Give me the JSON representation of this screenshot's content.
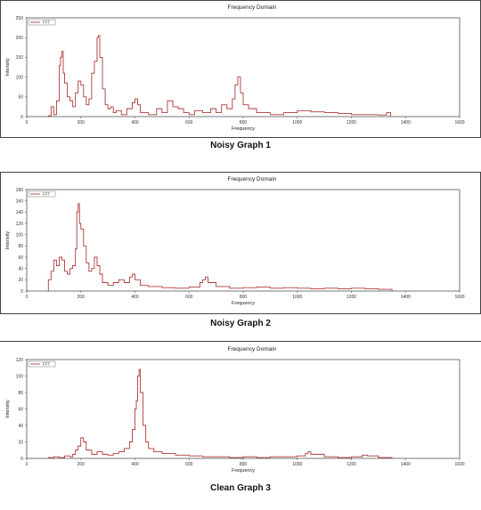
{
  "charts": [
    {
      "caption": "Noisy Graph 1",
      "chart_data": {
        "type": "line",
        "title": "Frequency Domain",
        "xlabel": "Frequency",
        "ylabel": "Intensity",
        "xlim": [
          0,
          1600
        ],
        "ylim": [
          0,
          250
        ],
        "xticks": [
          0,
          200,
          400,
          600,
          800,
          1000,
          1200,
          1400,
          1600
        ],
        "yticks": [
          0,
          50,
          100,
          150,
          200,
          250
        ],
        "legend": "top-left",
        "series": [
          {
            "name": "FFT",
            "color": "#b03a3a",
            "points": [
              [
                80,
                2
              ],
              [
                90,
                25
              ],
              [
                100,
                5
              ],
              [
                110,
                40
              ],
              [
                120,
                130
              ],
              [
                125,
                150
              ],
              [
                130,
                165
              ],
              [
                135,
                110
              ],
              [
                140,
                85
              ],
              [
                150,
                50
              ],
              [
                160,
                40
              ],
              [
                170,
                25
              ],
              [
                180,
                60
              ],
              [
                190,
                90
              ],
              [
                200,
                80
              ],
              [
                210,
                50
              ],
              [
                220,
                30
              ],
              [
                230,
                45
              ],
              [
                240,
                110
              ],
              [
                250,
                140
              ],
              [
                260,
                200
              ],
              [
                265,
                205
              ],
              [
                270,
                150
              ],
              [
                280,
                70
              ],
              [
                290,
                30
              ],
              [
                300,
                20
              ],
              [
                310,
                25
              ],
              [
                320,
                10
              ],
              [
                330,
                15
              ],
              [
                350,
                5
              ],
              [
                370,
                20
              ],
              [
                390,
                35
              ],
              [
                400,
                45
              ],
              [
                410,
                30
              ],
              [
                420,
                10
              ],
              [
                450,
                5
              ],
              [
                480,
                20
              ],
              [
                500,
                10
              ],
              [
                520,
                40
              ],
              [
                540,
                25
              ],
              [
                560,
                20
              ],
              [
                580,
                10
              ],
              [
                600,
                5
              ],
              [
                620,
                15
              ],
              [
                650,
                10
              ],
              [
                680,
                20
              ],
              [
                700,
                10
              ],
              [
                720,
                30
              ],
              [
                740,
                20
              ],
              [
                760,
                45
              ],
              [
                770,
                80
              ],
              [
                780,
                100
              ],
              [
                790,
                60
              ],
              [
                800,
                30
              ],
              [
                820,
                20
              ],
              [
                850,
                10
              ],
              [
                900,
                5
              ],
              [
                950,
                10
              ],
              [
                1000,
                15
              ],
              [
                1050,
                12
              ],
              [
                1100,
                10
              ],
              [
                1150,
                8
              ],
              [
                1200,
                5
              ],
              [
                1250,
                5
              ],
              [
                1300,
                4
              ],
              [
                1330,
                10
              ],
              [
                1345,
                6
              ]
            ]
          }
        ]
      }
    },
    {
      "caption": "Noisy Graph 2",
      "chart_data": {
        "type": "line",
        "title": "Frequency Domain",
        "xlabel": "Frequency",
        "ylabel": "Intensity",
        "xlim": [
          0,
          1600
        ],
        "ylim": [
          0,
          180
        ],
        "xticks": [
          0,
          200,
          400,
          600,
          800,
          1000,
          1200,
          1400,
          1600
        ],
        "yticks": [
          0,
          20,
          40,
          60,
          80,
          100,
          120,
          140,
          160,
          180
        ],
        "legend": "top-left",
        "series": [
          {
            "name": "FFT",
            "color": "#b03a3a",
            "points": [
              [
                80,
                20
              ],
              [
                90,
                35
              ],
              [
                100,
                55
              ],
              [
                110,
                45
              ],
              [
                120,
                60
              ],
              [
                130,
                55
              ],
              [
                140,
                35
              ],
              [
                150,
                30
              ],
              [
                160,
                40
              ],
              [
                170,
                45
              ],
              [
                180,
                75
              ],
              [
                185,
                140
              ],
              [
                190,
                155
              ],
              [
                195,
                120
              ],
              [
                200,
                110
              ],
              [
                210,
                80
              ],
              [
                220,
                50
              ],
              [
                230,
                35
              ],
              [
                240,
                40
              ],
              [
                250,
                60
              ],
              [
                260,
                45
              ],
              [
                270,
                30
              ],
              [
                280,
                15
              ],
              [
                300,
                10
              ],
              [
                320,
                15
              ],
              [
                340,
                20
              ],
              [
                360,
                15
              ],
              [
                380,
                25
              ],
              [
                390,
                30
              ],
              [
                400,
                20
              ],
              [
                420,
                10
              ],
              [
                450,
                8
              ],
              [
                500,
                6
              ],
              [
                550,
                5
              ],
              [
                600,
                7
              ],
              [
                640,
                15
              ],
              [
                650,
                20
              ],
              [
                660,
                25
              ],
              [
                670,
                15
              ],
              [
                700,
                8
              ],
              [
                750,
                5
              ],
              [
                800,
                6
              ],
              [
                850,
                7
              ],
              [
                900,
                5
              ],
              [
                950,
                6
              ],
              [
                1000,
                5
              ],
              [
                1050,
                4
              ],
              [
                1100,
                5
              ],
              [
                1150,
                4
              ],
              [
                1200,
                5
              ],
              [
                1250,
                4
              ],
              [
                1300,
                3
              ],
              [
                1350,
                2
              ]
            ]
          }
        ]
      }
    },
    {
      "caption": "Clean Graph 3",
      "chart_data": {
        "type": "line",
        "title": "Frequency Domain",
        "xlabel": "Frequency",
        "ylabel": "Intensity",
        "xlim": [
          0,
          1600
        ],
        "ylim": [
          0,
          120
        ],
        "xticks": [
          0,
          200,
          400,
          600,
          800,
          1000,
          1200,
          1400,
          1600
        ],
        "yticks": [
          0,
          20,
          40,
          60,
          80,
          100,
          120
        ],
        "legend": "top-left",
        "series": [
          {
            "name": "FFT",
            "color": "#b03a3a",
            "points": [
              [
                80,
                1
              ],
              [
                100,
                2
              ],
              [
                120,
                1
              ],
              [
                140,
                3
              ],
              [
                160,
                2
              ],
              [
                170,
                5
              ],
              [
                180,
                10
              ],
              [
                190,
                15
              ],
              [
                200,
                25
              ],
              [
                210,
                20
              ],
              [
                220,
                10
              ],
              [
                240,
                5
              ],
              [
                260,
                8
              ],
              [
                280,
                5
              ],
              [
                300,
                4
              ],
              [
                320,
                6
              ],
              [
                340,
                8
              ],
              [
                360,
                12
              ],
              [
                380,
                20
              ],
              [
                390,
                35
              ],
              [
                400,
                60
              ],
              [
                405,
                70
              ],
              [
                410,
                100
              ],
              [
                415,
                108
              ],
              [
                420,
                80
              ],
              [
                430,
                40
              ],
              [
                440,
                20
              ],
              [
                450,
                12
              ],
              [
                470,
                8
              ],
              [
                500,
                6
              ],
              [
                550,
                4
              ],
              [
                600,
                3
              ],
              [
                650,
                2
              ],
              [
                700,
                2
              ],
              [
                750,
                1
              ],
              [
                800,
                2
              ],
              [
                850,
                1
              ],
              [
                900,
                2
              ],
              [
                950,
                2
              ],
              [
                1000,
                3
              ],
              [
                1030,
                6
              ],
              [
                1040,
                8
              ],
              [
                1050,
                5
              ],
              [
                1100,
                2
              ],
              [
                1150,
                1
              ],
              [
                1200,
                2
              ],
              [
                1240,
                4
              ],
              [
                1260,
                3
              ],
              [
                1300,
                1
              ],
              [
                1350,
                1
              ]
            ]
          }
        ]
      }
    }
  ]
}
